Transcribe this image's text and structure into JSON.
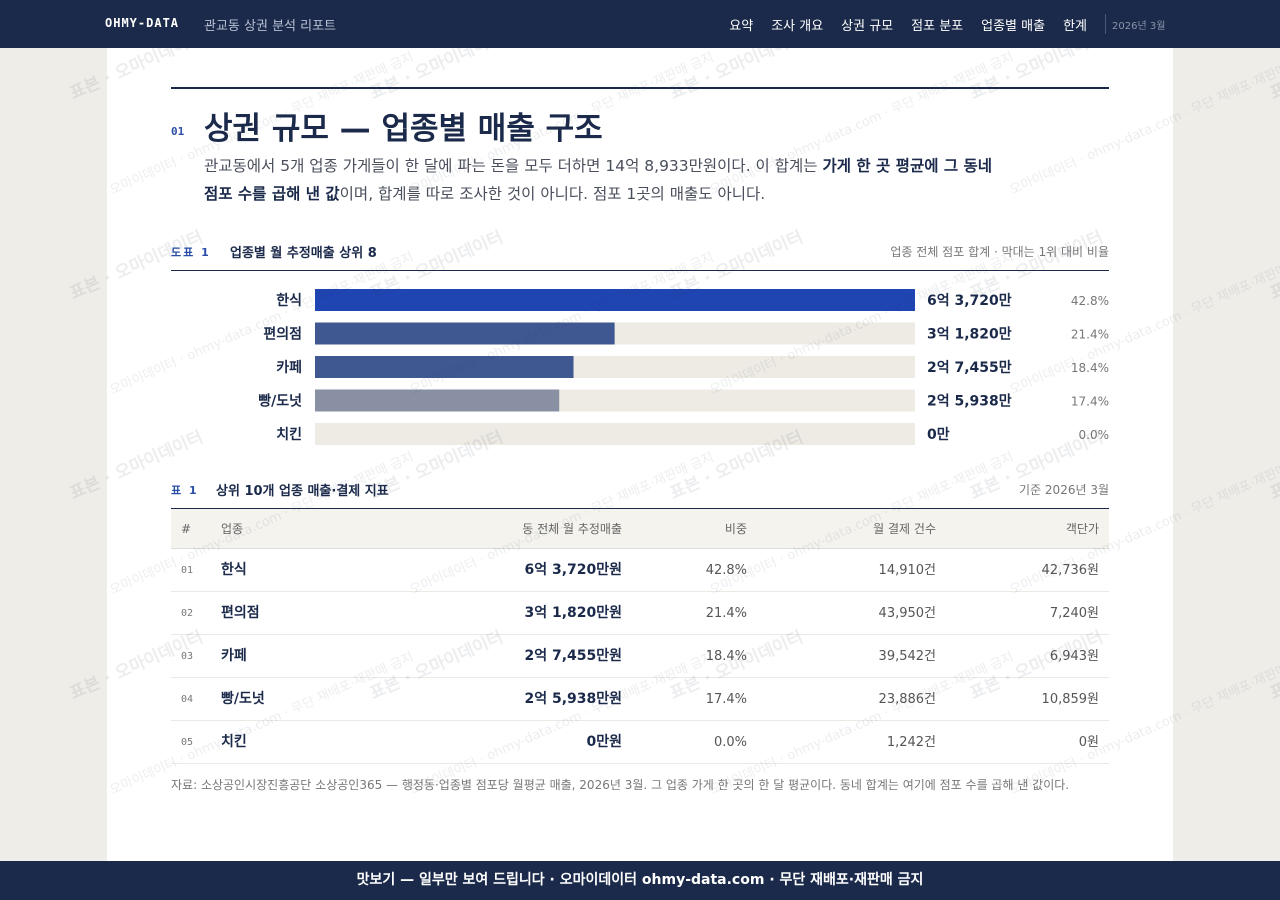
{
  "nav": {
    "brand": "OHMY-DATA",
    "subtitle": "관교동 상권 분석 리포트",
    "links": [
      "요약",
      "조사 개요",
      "상권 규모",
      "점포 분포",
      "업종별 매출",
      "한계"
    ],
    "date": "2026년 3월"
  },
  "section": {
    "number": "01",
    "title": "상권 규모 — 업종별 매출 구조",
    "lead": [
      "관교동에서 5개 업종 가게들이 한 달에 파는 돈을 모두 더하면 14억 8,933만원이다. 이 합계는 ",
      "가게 한 곳 평균에 그 동네 점포 수를 곱해 낸 값",
      "이며, 합계를 따로 조사한 것이 아니다. 점포 1곳의 매출도 아니다."
    ]
  },
  "chart_data": {
    "type": "bar",
    "label": "도표 1",
    "title": "업종별 월 추정매출 상위 8",
    "note": "업종 전체 점포 합계 · 막대는 1위 대비 비율",
    "categories": [
      "한식",
      "편의점",
      "카페",
      "빵/도넛",
      "치킨"
    ],
    "values": [
      63720,
      31820,
      27455,
      25938,
      0
    ],
    "value_labels": [
      "6억 3,720만",
      "3억 1,820만",
      "2억 7,455만",
      "2억 5,938만",
      "0만"
    ],
    "shares": [
      "42.8%",
      "21.4%",
      "18.4%",
      "17.4%",
      "0.0%"
    ],
    "colors": [
      "#1f45b3",
      "#3f5892",
      "#3f5892",
      "#8990a4",
      "#8990a4"
    ],
    "xlim": [
      0,
      63720
    ]
  },
  "table": {
    "label": "표 1",
    "title": "상위 10개 업종 매출·결제 지표",
    "basis": "기준 2026년 3월",
    "header": [
      "#",
      "업종",
      "동 전체 월 추정매출",
      "비중",
      "월 결제 건수",
      "객단가"
    ],
    "rows": [
      [
        "01",
        "한식",
        "6억 3,720만원",
        "42.8%",
        "14,910건",
        "42,736원"
      ],
      [
        "02",
        "편의점",
        "3억 1,820만원",
        "21.4%",
        "43,950건",
        "7,240원"
      ],
      [
        "03",
        "카페",
        "2억 7,455만원",
        "18.4%",
        "39,542건",
        "6,943원"
      ],
      [
        "04",
        "빵/도넛",
        "2억 5,938만원",
        "17.4%",
        "23,886건",
        "10,859원"
      ],
      [
        "05",
        "치킨",
        "0만원",
        "0.0%",
        "1,242건",
        "0원"
      ]
    ]
  },
  "source": "자료: 소상공인시장진흥공단 소상공인365 — 행정동·업종별 점포당 월평균 매출, 2026년 3월. 그 업종 가게 한 곳의 한 달 평균이다. 동네 합계는 여기에 점포 수를 곱해 낸 값이다.",
  "footer": "맛보기 — 일부만 보여 드립니다 · 오마이데이터 ohmy-data.com · 무단 재배포·재판매 금지",
  "watermark": [
    "표본 · 오마이데이터",
    "오마이데이터 · ohmy-data.com · 무단 재배포·재판매 금지"
  ]
}
